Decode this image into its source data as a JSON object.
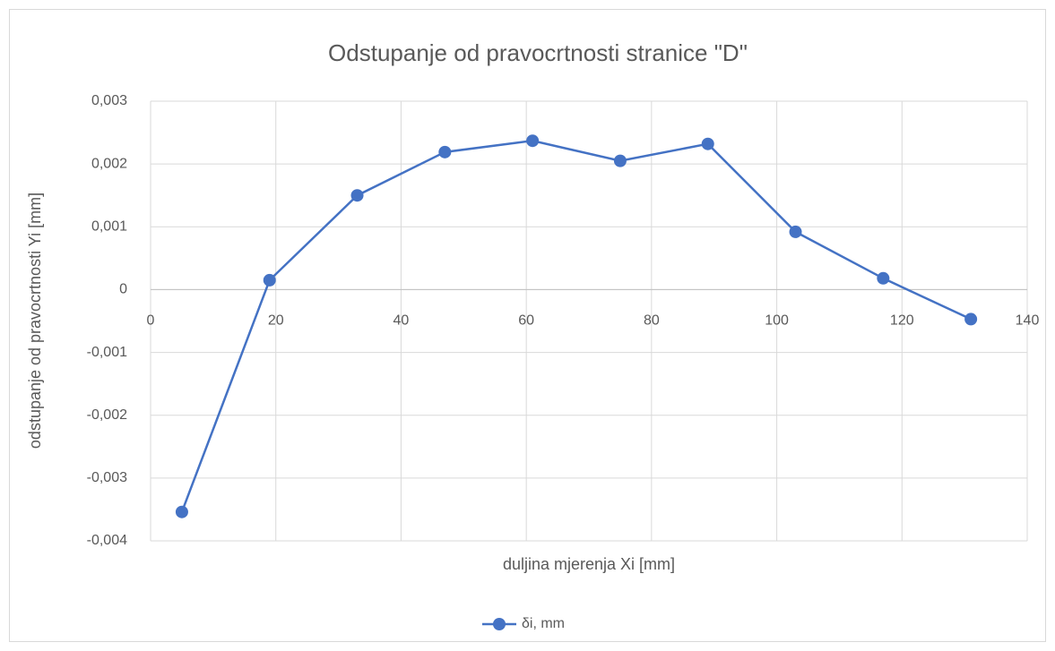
{
  "chart_data": {
    "type": "line",
    "title": "Odstupanje od pravocrtnosti stranice \"D\"",
    "x_label": "duljina mjerenja Xi [mm]",
    "y_label": "odstupanje od pravocrtnosti Yi [mm]",
    "x": [
      5,
      19,
      33,
      47,
      61,
      75,
      89,
      103,
      117,
      131
    ],
    "series": [
      {
        "name": "δi, mm",
        "color": "#4472c4",
        "values": [
          -0.00354,
          0.00015,
          0.0015,
          0.00219,
          0.00237,
          0.00205,
          0.00232,
          0.00092,
          0.00018,
          -0.00047
        ]
      }
    ],
    "xlim": [
      0,
      140
    ],
    "xticks": [
      0,
      20,
      40,
      60,
      80,
      100,
      120,
      140
    ],
    "ylim": [
      -0.004,
      0.003
    ],
    "yticks": [
      {
        "value": -0.004,
        "label": "-0,004"
      },
      {
        "value": -0.003,
        "label": "-0,003"
      },
      {
        "value": -0.002,
        "label": "-0,002"
      },
      {
        "value": -0.001,
        "label": "-0,001"
      },
      0,
      {
        "value": 0.001,
        "label": "0,001"
      },
      {
        "value": 0.002,
        "label": "0,002"
      },
      {
        "value": 0.003,
        "label": "0,003"
      }
    ],
    "grid": true,
    "legend": "bottom"
  }
}
